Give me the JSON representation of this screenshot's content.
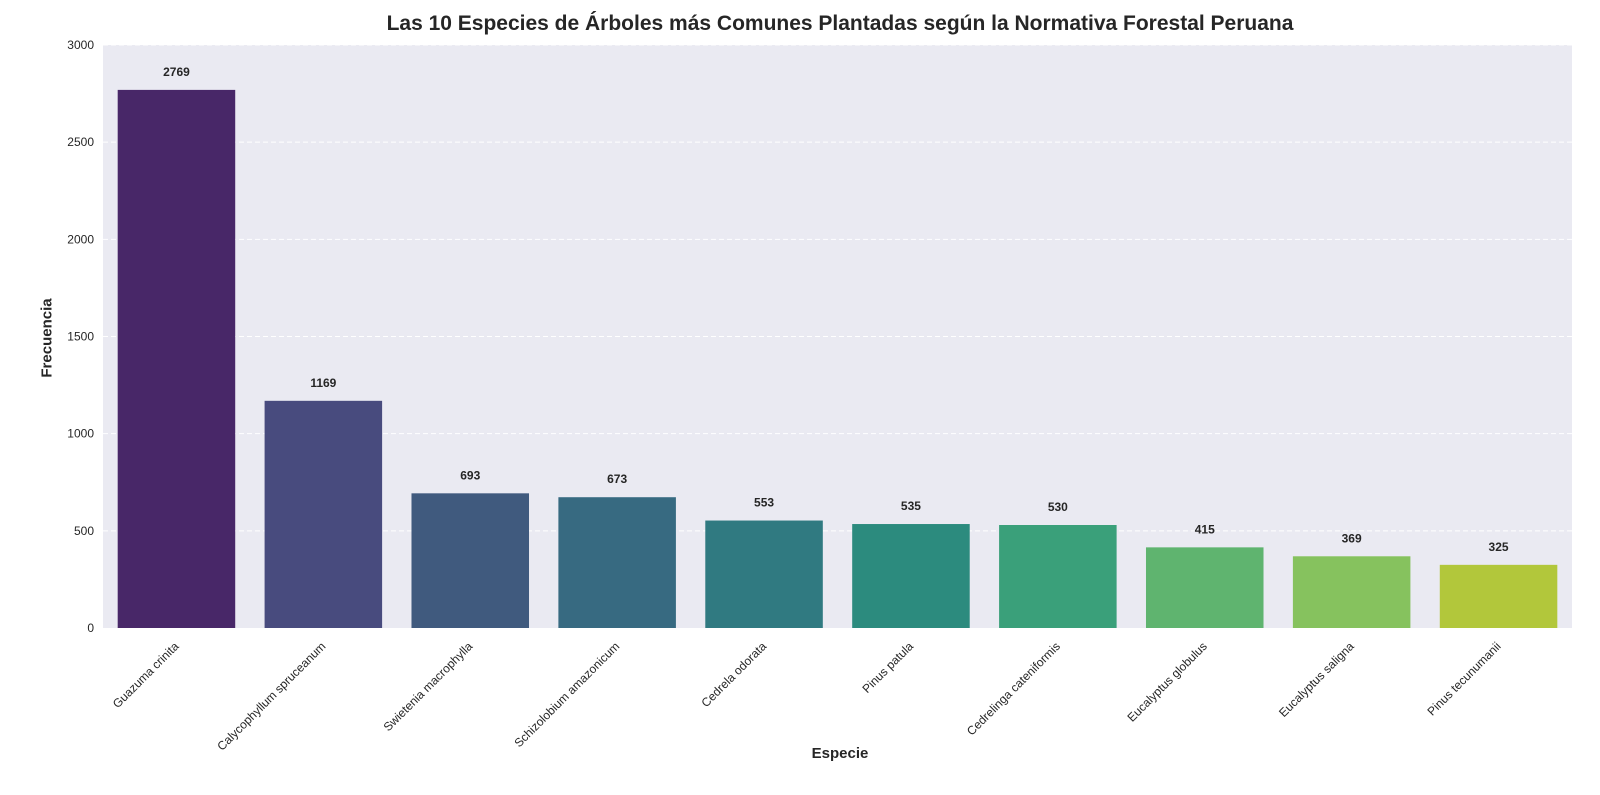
{
  "chart_data": {
    "type": "bar",
    "title": "Las 10 Especies de Árboles más Comunes Plantadas según la Normativa Forestal Peruana",
    "xlabel": "Especie",
    "ylabel": "Frecuencia",
    "categories": [
      "Guazuma crinita",
      "Calycophyllum spruceanum",
      "Swietenia macrophylla",
      "Schizolobium amazonicum",
      "Cedrela odorata",
      "Pinus patula",
      "Cedrelinga cateniformis",
      "Eucalyptus globulus",
      "Eucalyptus saligna",
      "Pinus tecunumanii"
    ],
    "values": [
      2769,
      1169,
      693,
      673,
      553,
      535,
      530,
      415,
      369,
      325
    ],
    "ylim": [
      0,
      3000
    ],
    "yticks": [
      0,
      500,
      1000,
      1500,
      2000,
      2500,
      3000
    ],
    "grid": "y-dashed",
    "colors": [
      "#482768",
      "#484B7E",
      "#405A7E",
      "#376A81",
      "#307A81",
      "#2C8B7E",
      "#3AA07A",
      "#5FB46F",
      "#86C25E",
      "#B2C73B"
    ],
    "plot_background": "#EAEAF2",
    "data_labels": true
  }
}
